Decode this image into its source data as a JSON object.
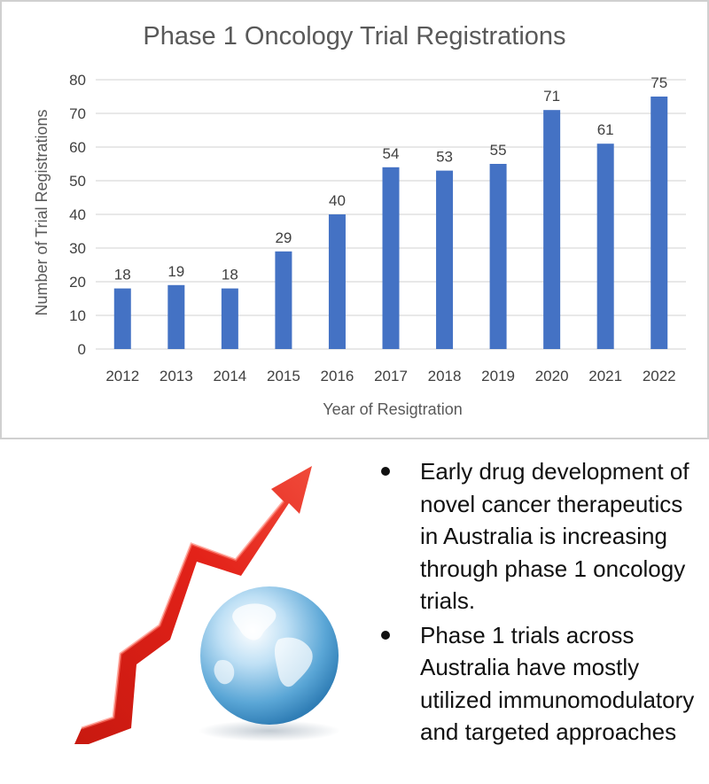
{
  "chart_data": {
    "type": "bar",
    "title": "Phase 1 Oncology Trial Registrations",
    "xlabel": "Year of Resigtration",
    "ylabel": "Number of Trial Registrations",
    "categories": [
      "2012",
      "2013",
      "2014",
      "2015",
      "2016",
      "2017",
      "2018",
      "2019",
      "2020",
      "2021",
      "2022"
    ],
    "values": [
      18,
      19,
      18,
      29,
      40,
      54,
      53,
      55,
      71,
      61,
      75
    ],
    "data_labels": [
      "18",
      "19",
      "18",
      "29",
      "40",
      "54",
      "53",
      "55",
      "71",
      "61",
      "75"
    ],
    "ylim": [
      0,
      80
    ],
    "yticks": [
      "0",
      "10",
      "20",
      "30",
      "40",
      "50",
      "60",
      "70",
      "80"
    ],
    "ytick_values": [
      0,
      10,
      20,
      30,
      40,
      50,
      60,
      70,
      80
    ],
    "grid": true,
    "legend": "none",
    "bar_color": "#4472c4",
    "grid_color": "#d9d9d9"
  },
  "illustration": {
    "arrow_icon": "rising-arrow-icon",
    "globe_icon": "globe-icon",
    "arrow_color": "#e32219",
    "globe_color": "#5aa6d6"
  },
  "bullets": [
    "Early drug development of novel cancer therapeutics in Australia is increasing through phase 1 oncology trials.",
    "Phase 1 trials across Australia have mostly utilized immunomodulatory and targeted approaches"
  ]
}
